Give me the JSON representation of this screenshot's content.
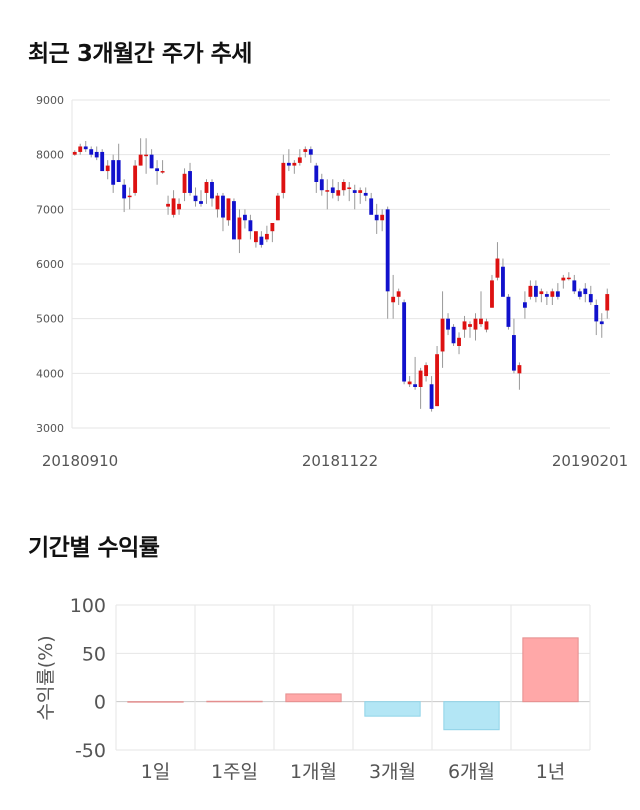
{
  "sections": {
    "price_title": "최근 3개월간 주가 추세",
    "return_title": "기간별 수익률"
  },
  "chart_data": [
    {
      "type": "candlestick",
      "title": "최근 3개월간 주가 추세",
      "ylim": [
        3000,
        9000
      ],
      "y_ticks": [
        "9000",
        "8000",
        "7000",
        "6000",
        "5000",
        "4000",
        "3000"
      ],
      "x_tick_labels": [
        "20180910",
        "20181122",
        "20190201"
      ],
      "grid": true,
      "up_color": "#dd1111",
      "down_color": "#1111cc",
      "candles": [
        [
          8000,
          8080,
          7980,
          8050
        ],
        [
          8050,
          8200,
          8000,
          8150
        ],
        [
          8150,
          8250,
          8050,
          8100
        ],
        [
          8100,
          8150,
          7950,
          8000
        ],
        [
          8050,
          8150,
          7900,
          7950
        ],
        [
          8050,
          8100,
          7700,
          7700
        ],
        [
          7700,
          7900,
          7550,
          7800
        ],
        [
          7900,
          8000,
          7300,
          7450
        ],
        [
          7900,
          8200,
          7500,
          7500
        ],
        [
          7450,
          7550,
          6950,
          7200
        ],
        [
          7250,
          7400,
          7000,
          7250
        ],
        [
          7300,
          7900,
          7250,
          7800
        ],
        [
          7800,
          8300,
          7800,
          8000
        ],
        [
          8000,
          8300,
          7650,
          8000
        ],
        [
          8000,
          8100,
          7750,
          7750
        ],
        [
          7750,
          7900,
          7450,
          7700
        ],
        [
          7700,
          7900,
          7650,
          7700
        ],
        [
          7050,
          7250,
          6900,
          7100
        ],
        [
          6900,
          7350,
          6850,
          7200
        ],
        [
          7000,
          7200,
          6900,
          7100
        ],
        [
          7300,
          7750,
          7150,
          7650
        ],
        [
          7700,
          7850,
          7250,
          7300
        ],
        [
          7250,
          7400,
          7050,
          7150
        ],
        [
          7150,
          7350,
          7050,
          7100
        ],
        [
          7300,
          7550,
          7100,
          7500
        ],
        [
          7500,
          7550,
          7050,
          7200
        ],
        [
          7000,
          7300,
          6850,
          7250
        ],
        [
          7250,
          7300,
          6600,
          6850
        ],
        [
          6800,
          7200,
          6700,
          7200
        ],
        [
          7150,
          7200,
          6500,
          6450
        ],
        [
          6450,
          7000,
          6200,
          6850
        ],
        [
          6900,
          7000,
          6650,
          6800
        ],
        [
          6800,
          6900,
          6450,
          6600
        ],
        [
          6400,
          6550,
          6300,
          6600
        ],
        [
          6500,
          6600,
          6300,
          6350
        ],
        [
          6450,
          6700,
          6400,
          6550
        ],
        [
          6600,
          6750,
          6400,
          6750
        ],
        [
          6800,
          7300,
          6800,
          7250
        ],
        [
          7300,
          8000,
          7200,
          7850
        ],
        [
          7850,
          8100,
          7700,
          7800
        ],
        [
          7800,
          7900,
          7650,
          7850
        ],
        [
          7850,
          8100,
          7800,
          7950
        ],
        [
          8050,
          8150,
          7950,
          8100
        ],
        [
          8100,
          8150,
          7850,
          8000
        ],
        [
          7800,
          7850,
          7300,
          7500
        ],
        [
          7550,
          7650,
          7250,
          7350
        ],
        [
          7350,
          7550,
          7000,
          7350
        ],
        [
          7400,
          7550,
          7200,
          7300
        ],
        [
          7250,
          7500,
          7150,
          7350
        ],
        [
          7350,
          7550,
          7250,
          7500
        ],
        [
          7400,
          7500,
          7150,
          7400
        ],
        [
          7350,
          7450,
          7000,
          7300
        ],
        [
          7300,
          7400,
          7100,
          7350
        ],
        [
          7300,
          7400,
          7150,
          7250
        ],
        [
          7200,
          7300,
          6950,
          6900
        ],
        [
          6900,
          7100,
          6550,
          6800
        ],
        [
          6800,
          7000,
          6600,
          6900
        ],
        [
          7000,
          7050,
          5000,
          5500
        ],
        [
          5300,
          5800,
          5000,
          5400
        ],
        [
          5400,
          5550,
          5250,
          5500
        ],
        [
          5300,
          5350,
          3800,
          3850
        ],
        [
          3800,
          3950,
          3750,
          3850
        ],
        [
          3800,
          4300,
          3700,
          3750
        ],
        [
          3750,
          4100,
          3350,
          4050
        ],
        [
          3950,
          4200,
          3850,
          4150
        ],
        [
          3800,
          3950,
          3300,
          3350
        ],
        [
          3400,
          4500,
          3400,
          4350
        ],
        [
          4400,
          5500,
          4100,
          5000
        ],
        [
          5000,
          5100,
          4700,
          4800
        ],
        [
          4850,
          4900,
          4500,
          4550
        ],
        [
          4500,
          4750,
          4350,
          4650
        ],
        [
          4800,
          5050,
          4650,
          4950
        ],
        [
          4850,
          4950,
          4650,
          4900
        ],
        [
          4800,
          5100,
          4600,
          5000
        ],
        [
          4900,
          5500,
          4850,
          5000
        ],
        [
          4800,
          5000,
          4750,
          4950
        ],
        [
          5200,
          5800,
          5200,
          5700
        ],
        [
          5750,
          6400,
          5700,
          6100
        ],
        [
          5950,
          6100,
          5450,
          5400
        ],
        [
          5400,
          5450,
          4800,
          4850
        ],
        [
          4700,
          5000,
          4000,
          4050
        ],
        [
          4000,
          4200,
          3700,
          4150
        ],
        [
          5300,
          5500,
          5000,
          5200
        ],
        [
          5400,
          5700,
          5350,
          5600
        ],
        [
          5600,
          5700,
          5300,
          5400
        ],
        [
          5450,
          5550,
          5300,
          5500
        ],
        [
          5450,
          5500,
          5250,
          5400
        ],
        [
          5400,
          5550,
          5250,
          5500
        ],
        [
          5500,
          5650,
          5350,
          5400
        ],
        [
          5700,
          5800,
          5550,
          5750
        ],
        [
          5750,
          5850,
          5700,
          5750
        ],
        [
          5700,
          5800,
          5450,
          5500
        ],
        [
          5500,
          5550,
          5350,
          5400
        ],
        [
          5550,
          5650,
          5300,
          5450
        ],
        [
          5450,
          5600,
          5250,
          5300
        ],
        [
          5250,
          5350,
          4700,
          4950
        ],
        [
          4950,
          5100,
          4650,
          4900
        ],
        [
          5150,
          5550,
          5000,
          5450
        ]
      ]
    },
    {
      "type": "bar",
      "ylabel": "수익률(%)",
      "ylim": [
        -50,
        100
      ],
      "y_ticks": [
        "100",
        "50",
        "0",
        "-50"
      ],
      "categories": [
        "1일",
        "1주일",
        "1개월",
        "3개월",
        "6개월",
        "1년"
      ],
      "values": [
        0,
        0.4,
        8,
        -15,
        -29,
        66
      ],
      "grid": true,
      "positive_color": "#ffa8a8",
      "negative_color": "#b3e6f5"
    }
  ]
}
